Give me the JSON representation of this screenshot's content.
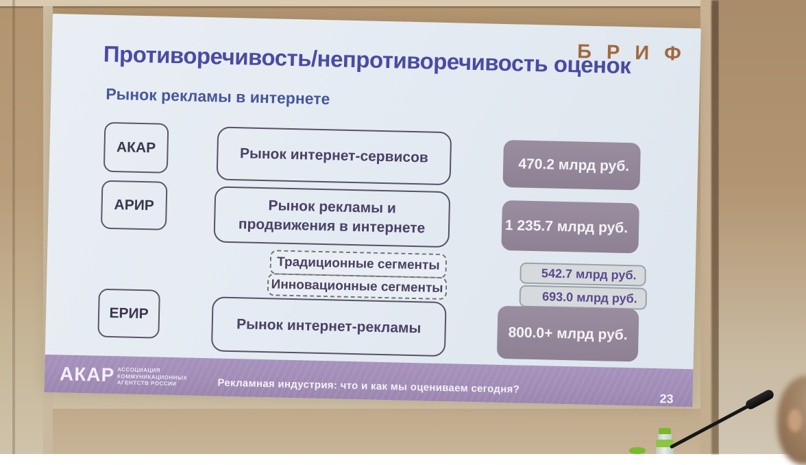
{
  "slide": {
    "logo_text": "БРИФ",
    "title": "Противоречивость/непротиворечивость оценок",
    "subtitle": "Рынок рекламы в интернете",
    "rows": [
      {
        "org": "АКАР",
        "market": "Рынок интернет-сервисов",
        "value": "470.2 млрд руб."
      },
      {
        "org": "АРИР",
        "market": "Рынок рекламы и продвижения в интернете",
        "value": "1 235.7 млрд руб."
      },
      {
        "org": "ЕРИР",
        "market": "Рынок интернет-рекламы",
        "value": "800.0+ млрд руб."
      }
    ],
    "segments": [
      {
        "label": "Традиционные сегменты",
        "value": "542.7 млрд руб."
      },
      {
        "label": "Инновационные сегменты",
        "value": "693.0 млрд руб."
      }
    ],
    "footer": {
      "logo": "АКАР",
      "logo_sub": [
        "АССОЦИАЦИЯ",
        "КОММУНИКАЦИОННЫХ",
        "АГЕНТСТВ РОССИИ"
      ],
      "caption": "Рекламная индустрия: что и как мы оцениваем сегодня?",
      "page": "23"
    }
  },
  "colors": {
    "title": "#4a4ba3",
    "subtitle": "#46579c",
    "brif_logo": "#a2683e",
    "value_box_fill": "#948799",
    "segment_value_text": "#594a8c",
    "footer_bar": "#a18cb6",
    "slide_background": "#e6ecf2",
    "wall": "#b89c79"
  }
}
